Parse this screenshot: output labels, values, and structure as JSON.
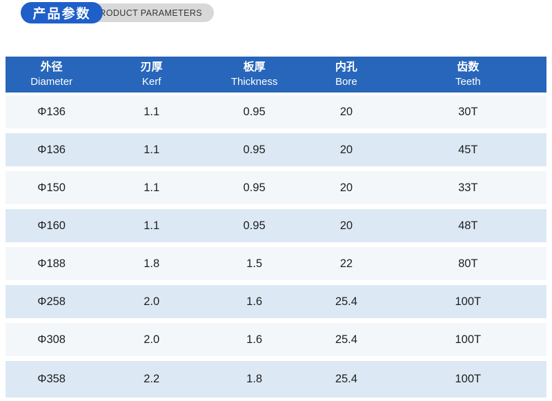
{
  "badge": {
    "title_cn": "产品参数",
    "title_en": "PRODUCT PARAMETERS"
  },
  "colors": {
    "badge_blue": "#1f5fc9",
    "header_blue": "#2766ba",
    "row_light": "#f4f7fa",
    "row_alt": "#dce9f4",
    "badge_gray": "#d8d8d8",
    "cell_text": "#1d1d1f"
  },
  "table": {
    "columns": [
      {
        "cn": "外径",
        "en": "Diameter"
      },
      {
        "cn": "刃厚",
        "en": "Kerf"
      },
      {
        "cn": "板厚",
        "en": "Thickness"
      },
      {
        "cn": "内孔",
        "en": "Bore"
      },
      {
        "cn": "齿数",
        "en": "Teeth"
      }
    ],
    "rows": [
      [
        "Φ136",
        "1.1",
        "0.95",
        "20",
        "30T"
      ],
      [
        "Φ136",
        "1.1",
        "0.95",
        "20",
        "45T"
      ],
      [
        "Φ150",
        "1.1",
        "0.95",
        "20",
        "33T"
      ],
      [
        "Φ160",
        "1.1",
        "0.95",
        "20",
        "48T"
      ],
      [
        "Φ188",
        "1.8",
        "1.5",
        "22",
        "80T"
      ],
      [
        "Φ258",
        "2.0",
        "1.6",
        "25.4",
        "100T"
      ],
      [
        "Φ308",
        "2.0",
        "1.6",
        "25.4",
        "100T"
      ],
      [
        "Φ358",
        "2.2",
        "1.8",
        "25.4",
        "100T"
      ]
    ]
  }
}
